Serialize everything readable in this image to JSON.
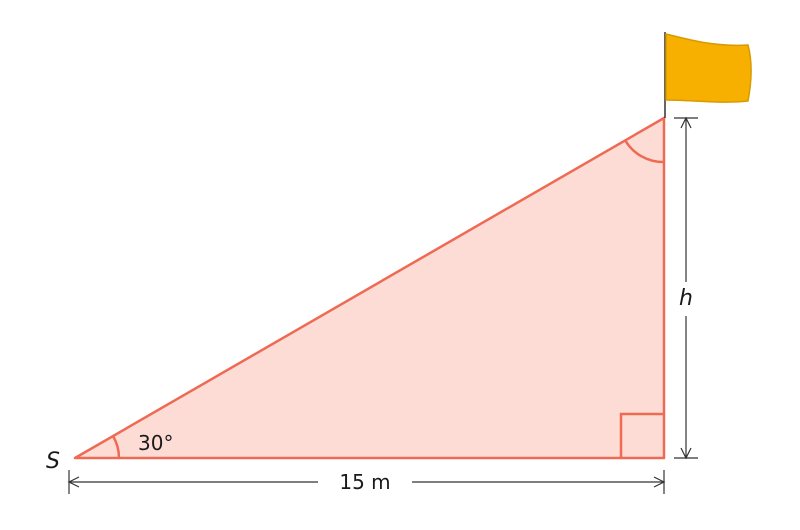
{
  "diagram": {
    "vertex_label": "S",
    "angle_label": "30°",
    "base_label": "15 m",
    "height_label": "h"
  },
  "colors": {
    "triangle_fill": "#fddcd6",
    "triangle_stroke": "#ee6a53",
    "dimension_line": "#333333",
    "flag_fill": "#f7b000",
    "flag_edge": "#d99a00",
    "flag_pole": "#333333"
  },
  "icons": {
    "flag": "flag-icon"
  }
}
